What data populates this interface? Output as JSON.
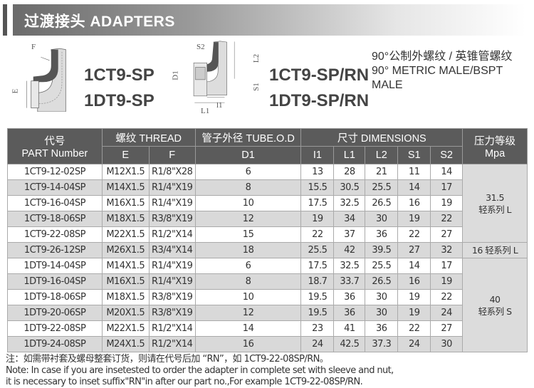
{
  "banner": {
    "title": "过渡接头  ADAPTERS"
  },
  "figure1": {
    "labels": {
      "F": "F",
      "E": "E"
    },
    "models": [
      "1CT9-SP",
      "1DT9-SP"
    ]
  },
  "figure2": {
    "labels": {
      "S2": "S2",
      "L2": "L2",
      "D1": "D1",
      "S1": "S1",
      "l1": "l1",
      "L1": "L1"
    },
    "models": [
      "1CT9-SP/RN",
      "1DT9-SP/RN"
    ]
  },
  "description": {
    "cn": "90°公制外螺纹 / 英锥管螺纹",
    "en": "90° METRIC MALE/BSPT MALE"
  },
  "table": {
    "headers": {
      "part_cn": "代号",
      "part_en": "PART Number",
      "thread": "螺纹 THREAD",
      "tube": "管子外径 TUBE.O.D",
      "dims": "尺寸 DIMENSIONS",
      "pressure_cn": "压力等级",
      "pressure_en": "Mpa",
      "E": "E",
      "F": "F",
      "D1": "D1",
      "l1": "I1",
      "L1": "L1",
      "L2": "L2",
      "S1": "S1",
      "S2": "S2"
    },
    "rows": [
      [
        "1CT9-12-02SP",
        "M12X1.5",
        "R1/8\"X28",
        "6",
        "13",
        "28",
        "21",
        "11",
        "14"
      ],
      [
        "1CT9-14-04SP",
        "M14X1.5",
        "R1/4\"X19",
        "8",
        "15.5",
        "30.5",
        "25.5",
        "14",
        "17"
      ],
      [
        "1CT9-16-04SP",
        "M16X1.5",
        "R1/4\"X19",
        "10",
        "17.5",
        "32.5",
        "26.5",
        "16",
        "19"
      ],
      [
        "1CT9-18-06SP",
        "M18X1.5",
        "R3/8\"X19",
        "12",
        "19",
        "34",
        "30",
        "19",
        "22"
      ],
      [
        "1CT9-22-08SP",
        "M22X1.5",
        "R1/2\"X14",
        "15",
        "22",
        "37",
        "36",
        "22",
        "27"
      ],
      [
        "1CT9-26-12SP",
        "M26X1.5",
        "R3/4\"X14",
        "18",
        "25.5",
        "42",
        "39.5",
        "27",
        "32"
      ],
      [
        "1DT9-14-04SP",
        "M14X1.5",
        "R1/4\"X19",
        "6",
        "17.5",
        "32.5",
        "25.5",
        "14",
        "17"
      ],
      [
        "1DT9-16-04SP",
        "M16X1.5",
        "R1/4\"X19",
        "8",
        "18.7",
        "33.7",
        "26.5",
        "16",
        "19"
      ],
      [
        "1DT9-18-06SP",
        "M18X1.5",
        "R3/8\"X19",
        "10",
        "19.5",
        "36",
        "30",
        "19",
        "22"
      ],
      [
        "1DT9-20-06SP",
        "M20X1.5",
        "R3/8\"X19",
        "12",
        "19.5",
        "36",
        "30",
        "19",
        "24"
      ],
      [
        "1DT9-22-08SP",
        "M22X1.5",
        "R1/2\"X14",
        "14",
        "23",
        "41",
        "36",
        "22",
        "27"
      ],
      [
        "1DT9-24-08SP",
        "M24X1.5",
        "R1/2\"X14",
        "16",
        "24",
        "42.5",
        "37.3",
        "24",
        "30"
      ]
    ],
    "pressure": [
      {
        "value": "31.5",
        "series": "轻系列 L"
      },
      {
        "value": "16 轻系列 L"
      },
      {
        "value": "40",
        "series": "轻系列 S"
      }
    ]
  },
  "note": {
    "cn": "注：如需带衬套及螺母整套订货，则请在代号后加 “RN”，如 1CT9-22-08SP/RN。",
    "en1": "Note: In case if you are insetested to order the adapter in complete set with sleeve and nut,",
    "en2": "it is necessary to inset suffix\"RN\"in after our part no.,For example 1CT9-22-08SP/RN."
  }
}
